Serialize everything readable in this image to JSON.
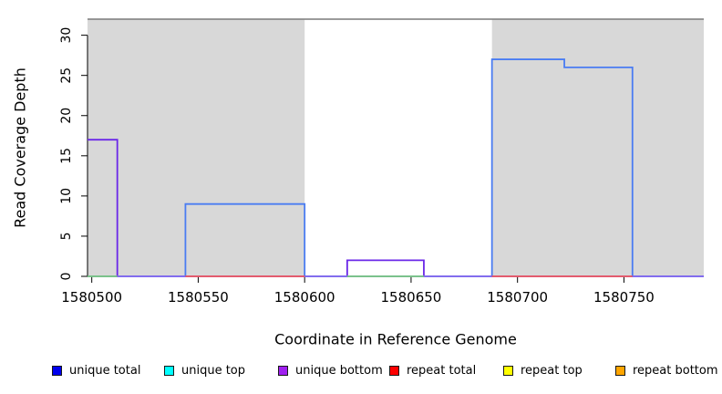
{
  "figure": {
    "xlabel": "Coordinate in Reference Genome",
    "ylabel": "Read Coverage Depth"
  },
  "legend": {
    "items": [
      {
        "label": "unique total",
        "color": "#0000ee"
      },
      {
        "label": "unique top",
        "color": "#00ffff"
      },
      {
        "label": "unique bottom",
        "color": "#a020f0"
      },
      {
        "label": "repeat total",
        "color": "#ff0000"
      },
      {
        "label": "repeat top",
        "color": "#ffff00"
      },
      {
        "label": "repeat bottom",
        "color": "#ffa500"
      }
    ]
  },
  "chart_data": {
    "type": "line",
    "subtype": "step-coverage",
    "title": "",
    "xlabel": "Coordinate in Reference Genome",
    "ylabel": "Read Coverage Depth",
    "xlim": [
      1580498,
      1580787.5
    ],
    "ylim": [
      0,
      32
    ],
    "x_ticks": [
      1580500,
      1580550,
      1580600,
      1580650,
      1580700,
      1580750
    ],
    "y_ticks": [
      0,
      5,
      10,
      15,
      20,
      25,
      30
    ],
    "grid": false,
    "legend_position": "bottom",
    "axis_color": "#000000",
    "shaded_regions": {
      "color": "#d8d8d8",
      "ranges": [
        [
          1580498,
          1580600
        ],
        [
          1580688,
          1580787.5
        ]
      ]
    },
    "top_boundary_line": {
      "y": 32,
      "color": "#7a7a7a"
    },
    "series": [
      {
        "name": "unique total",
        "color": "#4a7cf2",
        "points": [
          [
            1580498,
            0
          ],
          [
            1580544,
            0
          ],
          [
            1580544,
            9
          ],
          [
            1580600,
            9
          ],
          [
            1580600,
            0
          ],
          [
            1580688,
            0
          ],
          [
            1580688,
            27
          ],
          [
            1580722,
            27
          ],
          [
            1580722,
            26
          ],
          [
            1580754,
            26
          ],
          [
            1580754,
            0
          ],
          [
            1580787.5,
            0
          ]
        ]
      },
      {
        "name": "unique bottom",
        "color": "#6b28e8",
        "points": [
          [
            1580498,
            17
          ],
          [
            1580512,
            17
          ],
          [
            1580512,
            0
          ],
          [
            1580620,
            0
          ],
          [
            1580620,
            2
          ],
          [
            1580656,
            2
          ],
          [
            1580656,
            0
          ],
          [
            1580787.5,
            0
          ]
        ]
      }
    ],
    "baseline_segments": [
      {
        "from": 1580498,
        "to": 1580512,
        "color": "#7cc87c"
      },
      {
        "from": 1580512,
        "to": 1580544,
        "color": "#8673ef"
      },
      {
        "from": 1580544,
        "to": 1580600,
        "color": "#ef5d5d"
      },
      {
        "from": 1580600,
        "to": 1580620,
        "color": "#8673ef"
      },
      {
        "from": 1580620,
        "to": 1580656,
        "color": "#7cc87c"
      },
      {
        "from": 1580656,
        "to": 1580688,
        "color": "#8673ef"
      },
      {
        "from": 1580688,
        "to": 1580754,
        "color": "#ef5d5d"
      },
      {
        "from": 1580754,
        "to": 1580787.5,
        "color": "#8673ef"
      }
    ]
  }
}
